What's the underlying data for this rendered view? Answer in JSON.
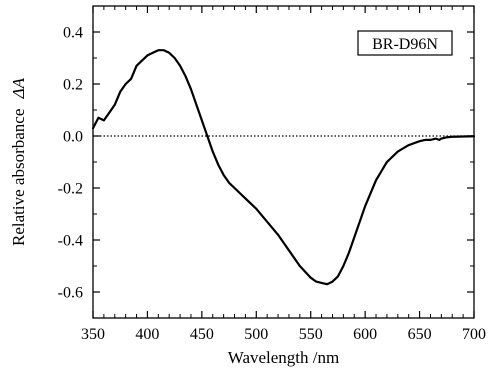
{
  "chart_data": {
    "type": "line",
    "title": "",
    "xlabel": "Wavelength /nm",
    "ylabel": "Relative absorbance",
    "ylabel_symbol": "ΔA",
    "xlim": [
      350,
      700
    ],
    "ylim": [
      -0.7,
      0.5
    ],
    "x_ticks": [
      350,
      400,
      450,
      500,
      550,
      600,
      650,
      700
    ],
    "x_tick_labels": [
      "350",
      "400",
      "450",
      "500",
      "550",
      "600",
      "650",
      "700"
    ],
    "y_ticks": [
      0.4,
      0.2,
      0.0,
      -0.2,
      -0.4,
      -0.6
    ],
    "y_tick_labels": [
      "0.4",
      "0.2",
      "0.0",
      "-0.2",
      "-0.4",
      "-0.6"
    ],
    "grid": false,
    "zero_line": "dotted",
    "legend_box": {
      "label": "BR-D96N",
      "placement": "top-right"
    },
    "series": [
      {
        "label": "BR-D96N",
        "color": "#000000",
        "x": [
          350,
          355,
          360,
          365,
          370,
          375,
          380,
          385,
          390,
          395,
          400,
          405,
          410,
          415,
          420,
          425,
          430,
          435,
          440,
          445,
          450,
          455,
          460,
          465,
          470,
          475,
          480,
          490,
          500,
          510,
          520,
          530,
          540,
          550,
          555,
          560,
          565,
          570,
          575,
          580,
          585,
          590,
          595,
          600,
          610,
          620,
          630,
          640,
          650,
          655,
          660,
          665,
          668,
          670,
          675,
          680,
          690,
          700
        ],
        "y": [
          0.03,
          0.07,
          0.06,
          0.09,
          0.12,
          0.17,
          0.2,
          0.22,
          0.27,
          0.29,
          0.31,
          0.32,
          0.33,
          0.33,
          0.32,
          0.3,
          0.27,
          0.23,
          0.18,
          0.12,
          0.06,
          0.0,
          -0.06,
          -0.11,
          -0.15,
          -0.18,
          -0.2,
          -0.24,
          -0.28,
          -0.33,
          -0.38,
          -0.44,
          -0.5,
          -0.545,
          -0.56,
          -0.565,
          -0.57,
          -0.56,
          -0.54,
          -0.5,
          -0.45,
          -0.39,
          -0.33,
          -0.27,
          -0.17,
          -0.1,
          -0.06,
          -0.035,
          -0.02,
          -0.015,
          -0.015,
          -0.01,
          -0.015,
          -0.01,
          -0.005,
          -0.003,
          -0.002,
          -0.001
        ]
      }
    ]
  }
}
